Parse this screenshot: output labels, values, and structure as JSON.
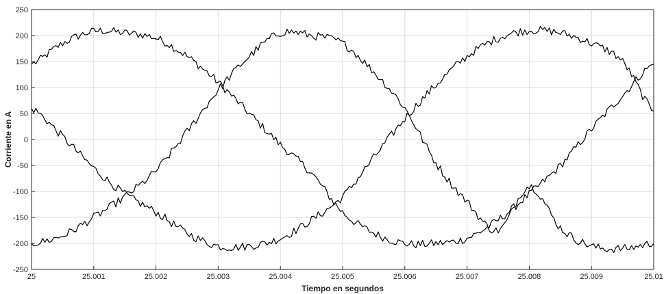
{
  "chart_data": {
    "type": "line",
    "title": "",
    "xlabel": "Tiempo en segundos",
    "ylabel": "Corriente en A",
    "xlim": [
      25,
      25.01
    ],
    "ylim": [
      -250,
      250
    ],
    "grid": true,
    "legend": "none",
    "line_color": "#000000",
    "x_ticks": [
      25,
      25.001,
      25.002,
      25.003,
      25.004,
      25.005,
      25.006,
      25.007,
      25.008,
      25.009,
      25.01
    ],
    "x_tick_labels": [
      "25",
      "25.001",
      "25.002",
      "25.003",
      "25.004",
      "25.005",
      "25.006",
      "25.007",
      "25.008",
      "25.009",
      "25.01"
    ],
    "y_ticks": [
      250,
      200,
      150,
      100,
      50,
      0,
      -50,
      -100,
      -150,
      -200,
      -250
    ],
    "y_tick_labels": [
      "250",
      "200",
      "150",
      "100",
      "50",
      "0",
      "-50",
      "-100",
      "-150",
      "-200",
      "-250"
    ],
    "x": [
      25.0,
      25.0005,
      25.001,
      25.0015,
      25.002,
      25.0025,
      25.003,
      25.0035,
      25.004,
      25.0045,
      25.005,
      25.0055,
      25.006,
      25.0065,
      25.007,
      25.0075,
      25.008,
      25.0085,
      25.009,
      25.0095,
      25.01
    ],
    "series": [
      {
        "values": [
          145,
          185,
          208,
          205,
          195,
          160,
          110,
          50,
          -10,
          -65,
          -140,
          -180,
          -200,
          -200,
          -190,
          -155,
          -105,
          -50,
          20,
          85,
          145
        ]
      },
      {
        "values": [
          60,
          5,
          -55,
          -105,
          -140,
          -180,
          -205,
          -205,
          -190,
          -155,
          -110,
          -35,
          40,
          105,
          160,
          195,
          210,
          205,
          185,
          150,
          55
        ]
      },
      {
        "values": [
          -200,
          -185,
          -150,
          -110,
          -60,
          15,
          95,
          160,
          205,
          200,
          185,
          130,
          60,
          -45,
          -120,
          -175,
          -90,
          -170,
          -205,
          -210,
          -200
        ]
      }
    ]
  }
}
